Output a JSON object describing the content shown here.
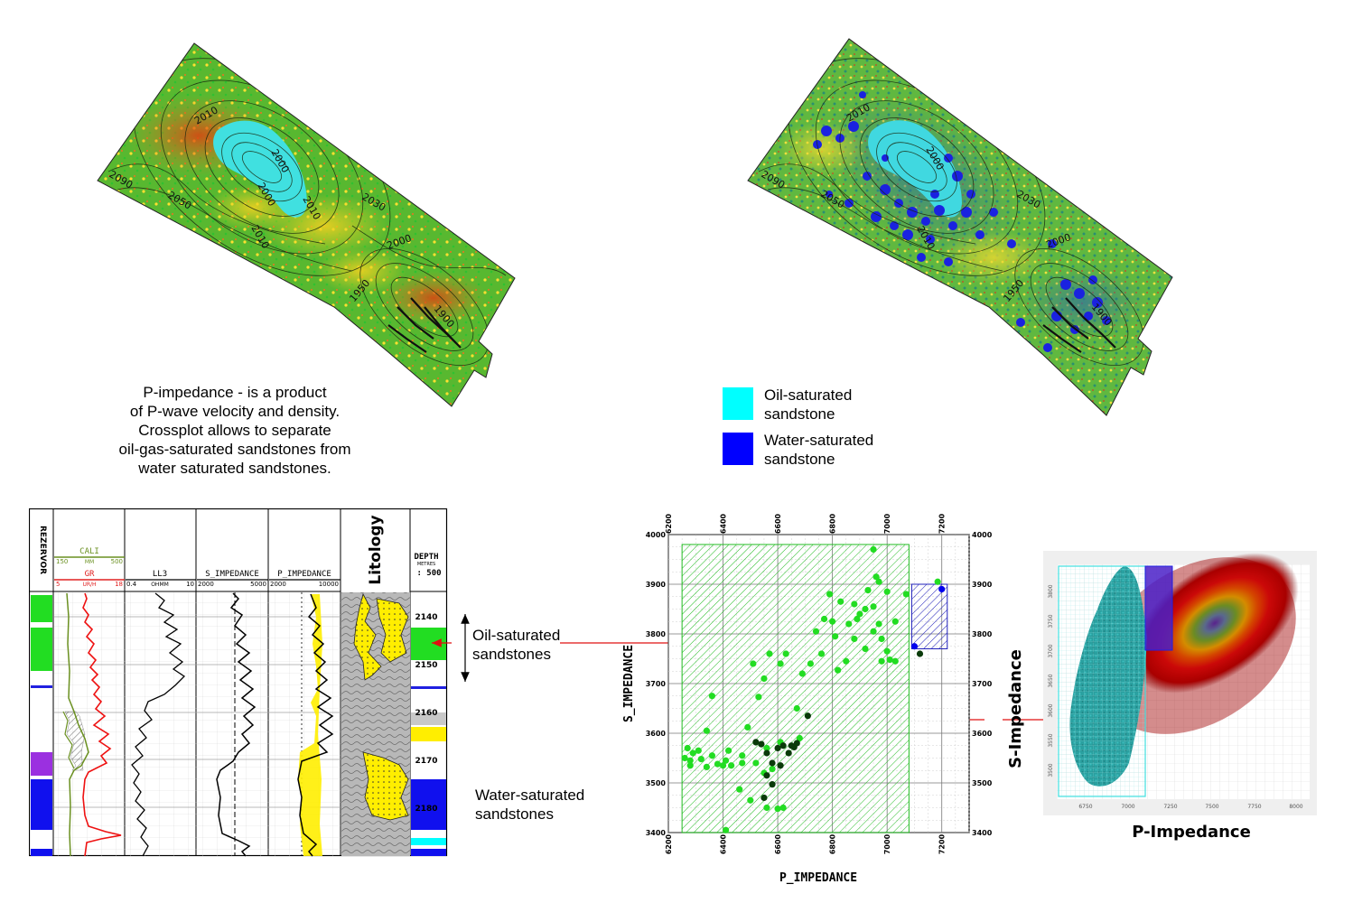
{
  "maps": {
    "left_contours": [
      "2010",
      "2000",
      "2030",
      "2090",
      "2050",
      "2010",
      "2000",
      "2000",
      "1950",
      "1900",
      "2010"
    ],
    "right_contours": [
      "2010",
      "2000",
      "2030",
      "2090",
      "2050",
      "2010",
      "2000",
      "1950",
      "1900"
    ]
  },
  "caption": {
    "lines": [
      "P-impedance - is a product",
      "of P-wave velocity and density.",
      "Crossplot allows to separate",
      "oil-gas-saturated sandstones from",
      "water saturated sandstones."
    ]
  },
  "legend": {
    "oil": {
      "line1": "Oil-saturated",
      "line2": "sandstone",
      "color": "#00ffff"
    },
    "water": {
      "line1": "Water-saturated",
      "line2": "sandstone",
      "color": "#0000ff"
    }
  },
  "well_log": {
    "rezervor_label": "REZERVOR",
    "cali": {
      "name": "CALI",
      "min": "150",
      "unit": "MM",
      "max": "500"
    },
    "gr": {
      "name": "GR",
      "min": "5",
      "unit": "UR/H",
      "max": "18"
    },
    "ll3": {
      "name": "LL3",
      "min": "0.4",
      "unit": "OHMM",
      "max": "10"
    },
    "s_imp": {
      "name": "S_IMPEDANCE",
      "min": "2000",
      "max": "5000"
    },
    "p_imp": {
      "name": "P_IMPEDANCE",
      "min": "2000",
      "max": "10000"
    },
    "litology_label": "Litology",
    "depth": {
      "name": "DEPTH",
      "unit": "METRES",
      "scale": ": 500",
      "ticks": [
        "2140",
        "2150",
        "2160",
        "2170",
        "2180"
      ]
    }
  },
  "annotations": {
    "oil_line1": "Oil-saturated",
    "oil_line2": "sandstones",
    "water_line1": "Water-saturated",
    "water_line2": "sandstones"
  },
  "crossplot": {
    "x_ticks": [
      "6200",
      "6400",
      "6600",
      "6800",
      "7000",
      "7200"
    ],
    "y_ticks": [
      "4000",
      "3900",
      "3800",
      "3700",
      "3600",
      "3500",
      "3400"
    ],
    "xlabel": "P_IMPEDANCE",
    "ylabel": "S_IMPEDANCE"
  },
  "chart_data": {
    "type": "scatter",
    "xlabel": "P_IMPEDANCE",
    "ylabel": "S_IMPEDANCE",
    "xlim": [
      6200,
      7300
    ],
    "ylim": [
      3400,
      4000
    ],
    "x_ticks": [
      6200,
      6400,
      6600,
      6800,
      7000,
      7200
    ],
    "y_ticks": [
      3400,
      3500,
      3600,
      3700,
      3800,
      3900,
      4000
    ],
    "grid": true,
    "series": [
      {
        "color": "#22dd22",
        "points": [
          [
            6950,
            3970
          ],
          [
            6960,
            3915
          ],
          [
            6970,
            3905
          ],
          [
            6930,
            3888
          ],
          [
            7000,
            3885
          ],
          [
            7070,
            3880
          ],
          [
            7185,
            3905
          ],
          [
            6790,
            3880
          ],
          [
            6830,
            3865
          ],
          [
            6880,
            3860
          ],
          [
            6920,
            3850
          ],
          [
            6950,
            3855
          ],
          [
            6900,
            3840
          ],
          [
            6890,
            3830
          ],
          [
            6800,
            3825
          ],
          [
            6860,
            3820
          ],
          [
            6970,
            3820
          ],
          [
            7030,
            3825
          ],
          [
            6770,
            3830
          ],
          [
            6810,
            3795
          ],
          [
            6740,
            3805
          ],
          [
            6880,
            3790
          ],
          [
            6950,
            3805
          ],
          [
            6980,
            3790
          ],
          [
            6920,
            3770
          ],
          [
            7000,
            3765
          ],
          [
            6980,
            3745
          ],
          [
            7010,
            3748
          ],
          [
            7030,
            3745
          ],
          [
            6850,
            3745
          ],
          [
            6760,
            3760
          ],
          [
            6630,
            3760
          ],
          [
            6720,
            3740
          ],
          [
            6610,
            3740
          ],
          [
            6570,
            3760
          ],
          [
            6550,
            3710
          ],
          [
            6690,
            3720
          ],
          [
            6510,
            3740
          ],
          [
            6820,
            3727
          ],
          [
            6360,
            3675
          ],
          [
            6530,
            3673
          ],
          [
            6670,
            3650
          ],
          [
            6340,
            3605
          ],
          [
            6490,
            3612
          ],
          [
            6680,
            3590
          ],
          [
            6610,
            3582
          ],
          [
            6560,
            3570
          ],
          [
            6270,
            3570
          ],
          [
            6290,
            3560
          ],
          [
            6310,
            3565
          ],
          [
            6360,
            3555
          ],
          [
            6420,
            3565
          ],
          [
            6470,
            3555
          ],
          [
            6410,
            3545
          ],
          [
            6260,
            3550
          ],
          [
            6280,
            3545
          ],
          [
            6320,
            3548
          ],
          [
            6380,
            3538
          ],
          [
            6470,
            3540
          ],
          [
            6280,
            3535
          ],
          [
            6340,
            3532
          ],
          [
            6400,
            3535
          ],
          [
            6430,
            3535
          ],
          [
            6520,
            3540
          ],
          [
            6550,
            3520
          ],
          [
            6580,
            3528
          ],
          [
            6460,
            3487
          ],
          [
            6500,
            3465
          ],
          [
            6560,
            3450
          ],
          [
            6600,
            3448
          ],
          [
            6620,
            3450
          ],
          [
            6410,
            3405
          ]
        ]
      },
      {
        "color": "#0a3a0a",
        "points": [
          [
            6710,
            3635
          ],
          [
            6520,
            3582
          ],
          [
            6540,
            3578
          ],
          [
            6620,
            3575
          ],
          [
            6650,
            3575
          ],
          [
            6660,
            3572
          ],
          [
            6670,
            3580
          ],
          [
            6600,
            3570
          ],
          [
            6640,
            3560
          ],
          [
            6560,
            3560
          ],
          [
            6580,
            3540
          ],
          [
            6610,
            3535
          ],
          [
            6560,
            3515
          ],
          [
            6580,
            3497
          ],
          [
            6550,
            3470
          ],
          [
            7120,
            3760
          ]
        ]
      },
      {
        "color": "#0000ee",
        "points": [
          [
            7200,
            3890
          ],
          [
            7100,
            3775
          ]
        ]
      }
    ],
    "regions": [
      {
        "name": "",
        "x": [
          6250,
          7080
        ],
        "y": [
          3400,
          3980
        ],
        "color": "#22bb22"
      },
      {
        "name": "",
        "x": [
          7090,
          7220
        ],
        "y": [
          3770,
          3900
        ],
        "color": "#2222bb"
      }
    ]
  },
  "density_plot": {
    "x_ticks": [
      "6750",
      "7000",
      "7250",
      "7500",
      "7750",
      "8000"
    ],
    "y_ticks": [
      "3800",
      "3750",
      "3700",
      "3650",
      "3600",
      "3550",
      "3500"
    ],
    "xlabel": "P-Impedance",
    "ylabel": "S-Impedance"
  }
}
